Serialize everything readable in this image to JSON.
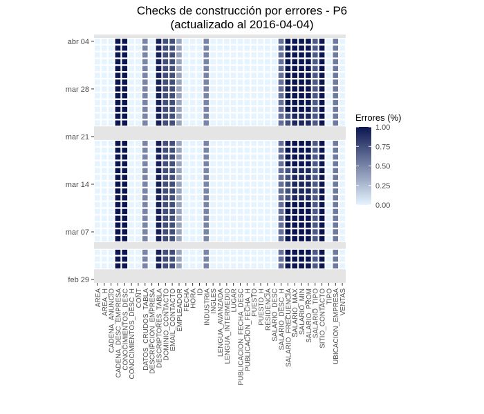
{
  "chart_data": {
    "type": "heatmap",
    "title_line1": "Checks de construcción por errores - P6",
    "title_line2": "(actualizado al 2016-04-04)",
    "x_categories": [
      "AREA",
      "AREA_H",
      "CADENA_ANUNCIO",
      "CADENA_DESC_EMPRESA",
      "CONOCIMIENTOS_DESC",
      "CONOCIMIENTOS_DESC_H",
      "CONT",
      "DATOS_CRUDOS_TABLA",
      "DESCRIPCION_EMPRESA",
      "DESCRIPTORES_TABLA",
      "DOMINIO_CONTACTO",
      "EMAIL_CONTACTO",
      "EMPLEADOR",
      "FECHA",
      "HORA",
      "ID",
      "INDUSTRIA",
      "INGLES",
      "LENGUA_AVANZADA",
      "LENGUA_INTERMEDIO",
      "LUGAR",
      "PUBLICACION_FECHA_DESC",
      "PUBLICACION_FECHA_H",
      "PUESTO",
      "PUESTO_H",
      "RESIDENCIA",
      "SALARIO_DESC",
      "SALARIO_DESC_H",
      "SALARIO_FRECUENCIA",
      "SALARIO_MAX",
      "SALARIO_MIN",
      "SALARIO_PROM",
      "SALARIO_TIPO",
      "SITIO_CONTACTO",
      "TIPO",
      "UBICACION_EMPRESA",
      "VENTAS"
    ],
    "y_tick_labels": [
      "feb 29",
      "mar 07",
      "mar 14",
      "mar 21",
      "mar 28",
      "abr 04"
    ],
    "y_ticks_dates": [
      "2016-02-29",
      "2016-03-07",
      "2016-03-14",
      "2016-03-21",
      "2016-03-28",
      "2016-04-04"
    ],
    "date_range": [
      "2016-02-29",
      "2016-04-04"
    ],
    "days_with_data": [
      "2016-03-02",
      "2016-03-03",
      "2016-03-04",
      "2016-03-06",
      "2016-03-07",
      "2016-03-08",
      "2016-03-09",
      "2016-03-10",
      "2016-03-11",
      "2016-03-12",
      "2016-03-13",
      "2016-03-14",
      "2016-03-15",
      "2016-03-16",
      "2016-03-17",
      "2016-03-18",
      "2016-03-19",
      "2016-03-20",
      "2016-03-23",
      "2016-03-24",
      "2016-03-25",
      "2016-03-26",
      "2016-03-27",
      "2016-03-28",
      "2016-03-29",
      "2016-03-30",
      "2016-03-31",
      "2016-04-01",
      "2016-04-02",
      "2016-04-03",
      "2016-04-04"
    ],
    "column_values": {
      "CADENA_DESC_EMPRESA": 1.0,
      "CONOCIMIENTOS_DESC": 1.0,
      "DATOS_CRUDOS_TABLA": 0.5,
      "DESCRIPTORES_TABLA": 0.95,
      "DOMINIO_CONTACTO": 0.75,
      "EMAIL_CONTACTO": 0.75,
      "EMPLEADOR": 0.35,
      "INDUSTRIA": 0.5,
      "SALARIO_DESC_H": 0.6,
      "SALARIO_FRECUENCIA": 0.75,
      "SALARIO_MAX": 0.92,
      "SALARIO_MIN": 0.92,
      "SALARIO_PROM": 0.92,
      "SALARIO_TIPO": 0.7,
      "SITIO_CONTACTO": 1.0,
      "UBICACION_EMPRESA": 0.55
    },
    "salary_peak_rows": {
      "columns": [
        "SALARIO_FRECUENCIA",
        "SALARIO_MAX",
        "SALARIO_MIN",
        "SALARIO_PROM"
      ],
      "value": 1.0,
      "date_ranges": [
        [
          "2016-03-02",
          "2016-03-04"
        ],
        [
          "2016-03-06",
          "2016-03-11"
        ],
        [
          "2016-03-17",
          "2016-03-20"
        ],
        [
          "2016-03-25",
          "2016-04-04"
        ]
      ]
    },
    "default_value": 0.0,
    "legend": {
      "title": "Errores (%)",
      "min": 0,
      "max": 1,
      "ticks": [
        "0.00",
        "0.25",
        "0.50",
        "0.75",
        "1.00"
      ],
      "low_color": "#e6f4ff",
      "high_color": "#0b1650"
    },
    "colors": {
      "panel_background": "#ffffff",
      "gap_band": "#e5e5e5",
      "tile_outline": "#ffffff"
    }
  }
}
